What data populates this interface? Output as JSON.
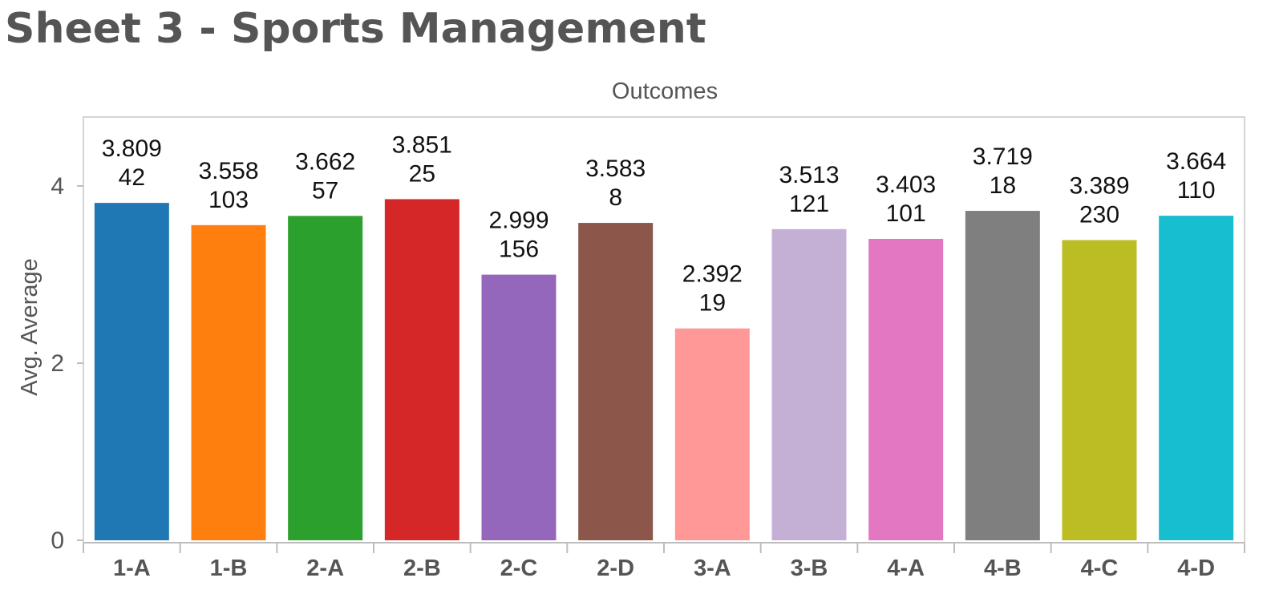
{
  "page": {
    "title": "Sheet 3 - Sports Management"
  },
  "chart_data": {
    "type": "bar",
    "title": "Outcomes",
    "xlabel": "",
    "ylabel": "Avg. Average",
    "ylim": [
      0,
      4.8
    ],
    "yticks": [
      0,
      2,
      4
    ],
    "grid": false,
    "legend": "none",
    "categories": [
      "1-A",
      "1-B",
      "2-A",
      "2-B",
      "2-C",
      "2-D",
      "3-A",
      "3-B",
      "4-A",
      "4-B",
      "4-C",
      "4-D"
    ],
    "values": [
      3.809,
      3.558,
      3.662,
      3.851,
      2.999,
      3.583,
      2.392,
      3.513,
      3.403,
      3.719,
      3.389,
      3.664
    ],
    "value_labels": [
      "3.809",
      "3.558",
      "3.662",
      "3.851",
      "2.999",
      "3.583",
      "2.392",
      "3.513",
      "3.403",
      "3.719",
      "3.389",
      "3.664"
    ],
    "counts": [
      "42",
      "103",
      "57",
      "25",
      "156",
      "8",
      "19",
      "121",
      "101",
      "18",
      "230",
      "110"
    ],
    "colors": [
      "#1f77b4",
      "#ff7f0e",
      "#2ca02c",
      "#d62728",
      "#9467bd",
      "#8c564b",
      "#ff9896",
      "#c5b0d5",
      "#e377c2",
      "#7f7f7f",
      "#bcbd22",
      "#17becf"
    ]
  }
}
